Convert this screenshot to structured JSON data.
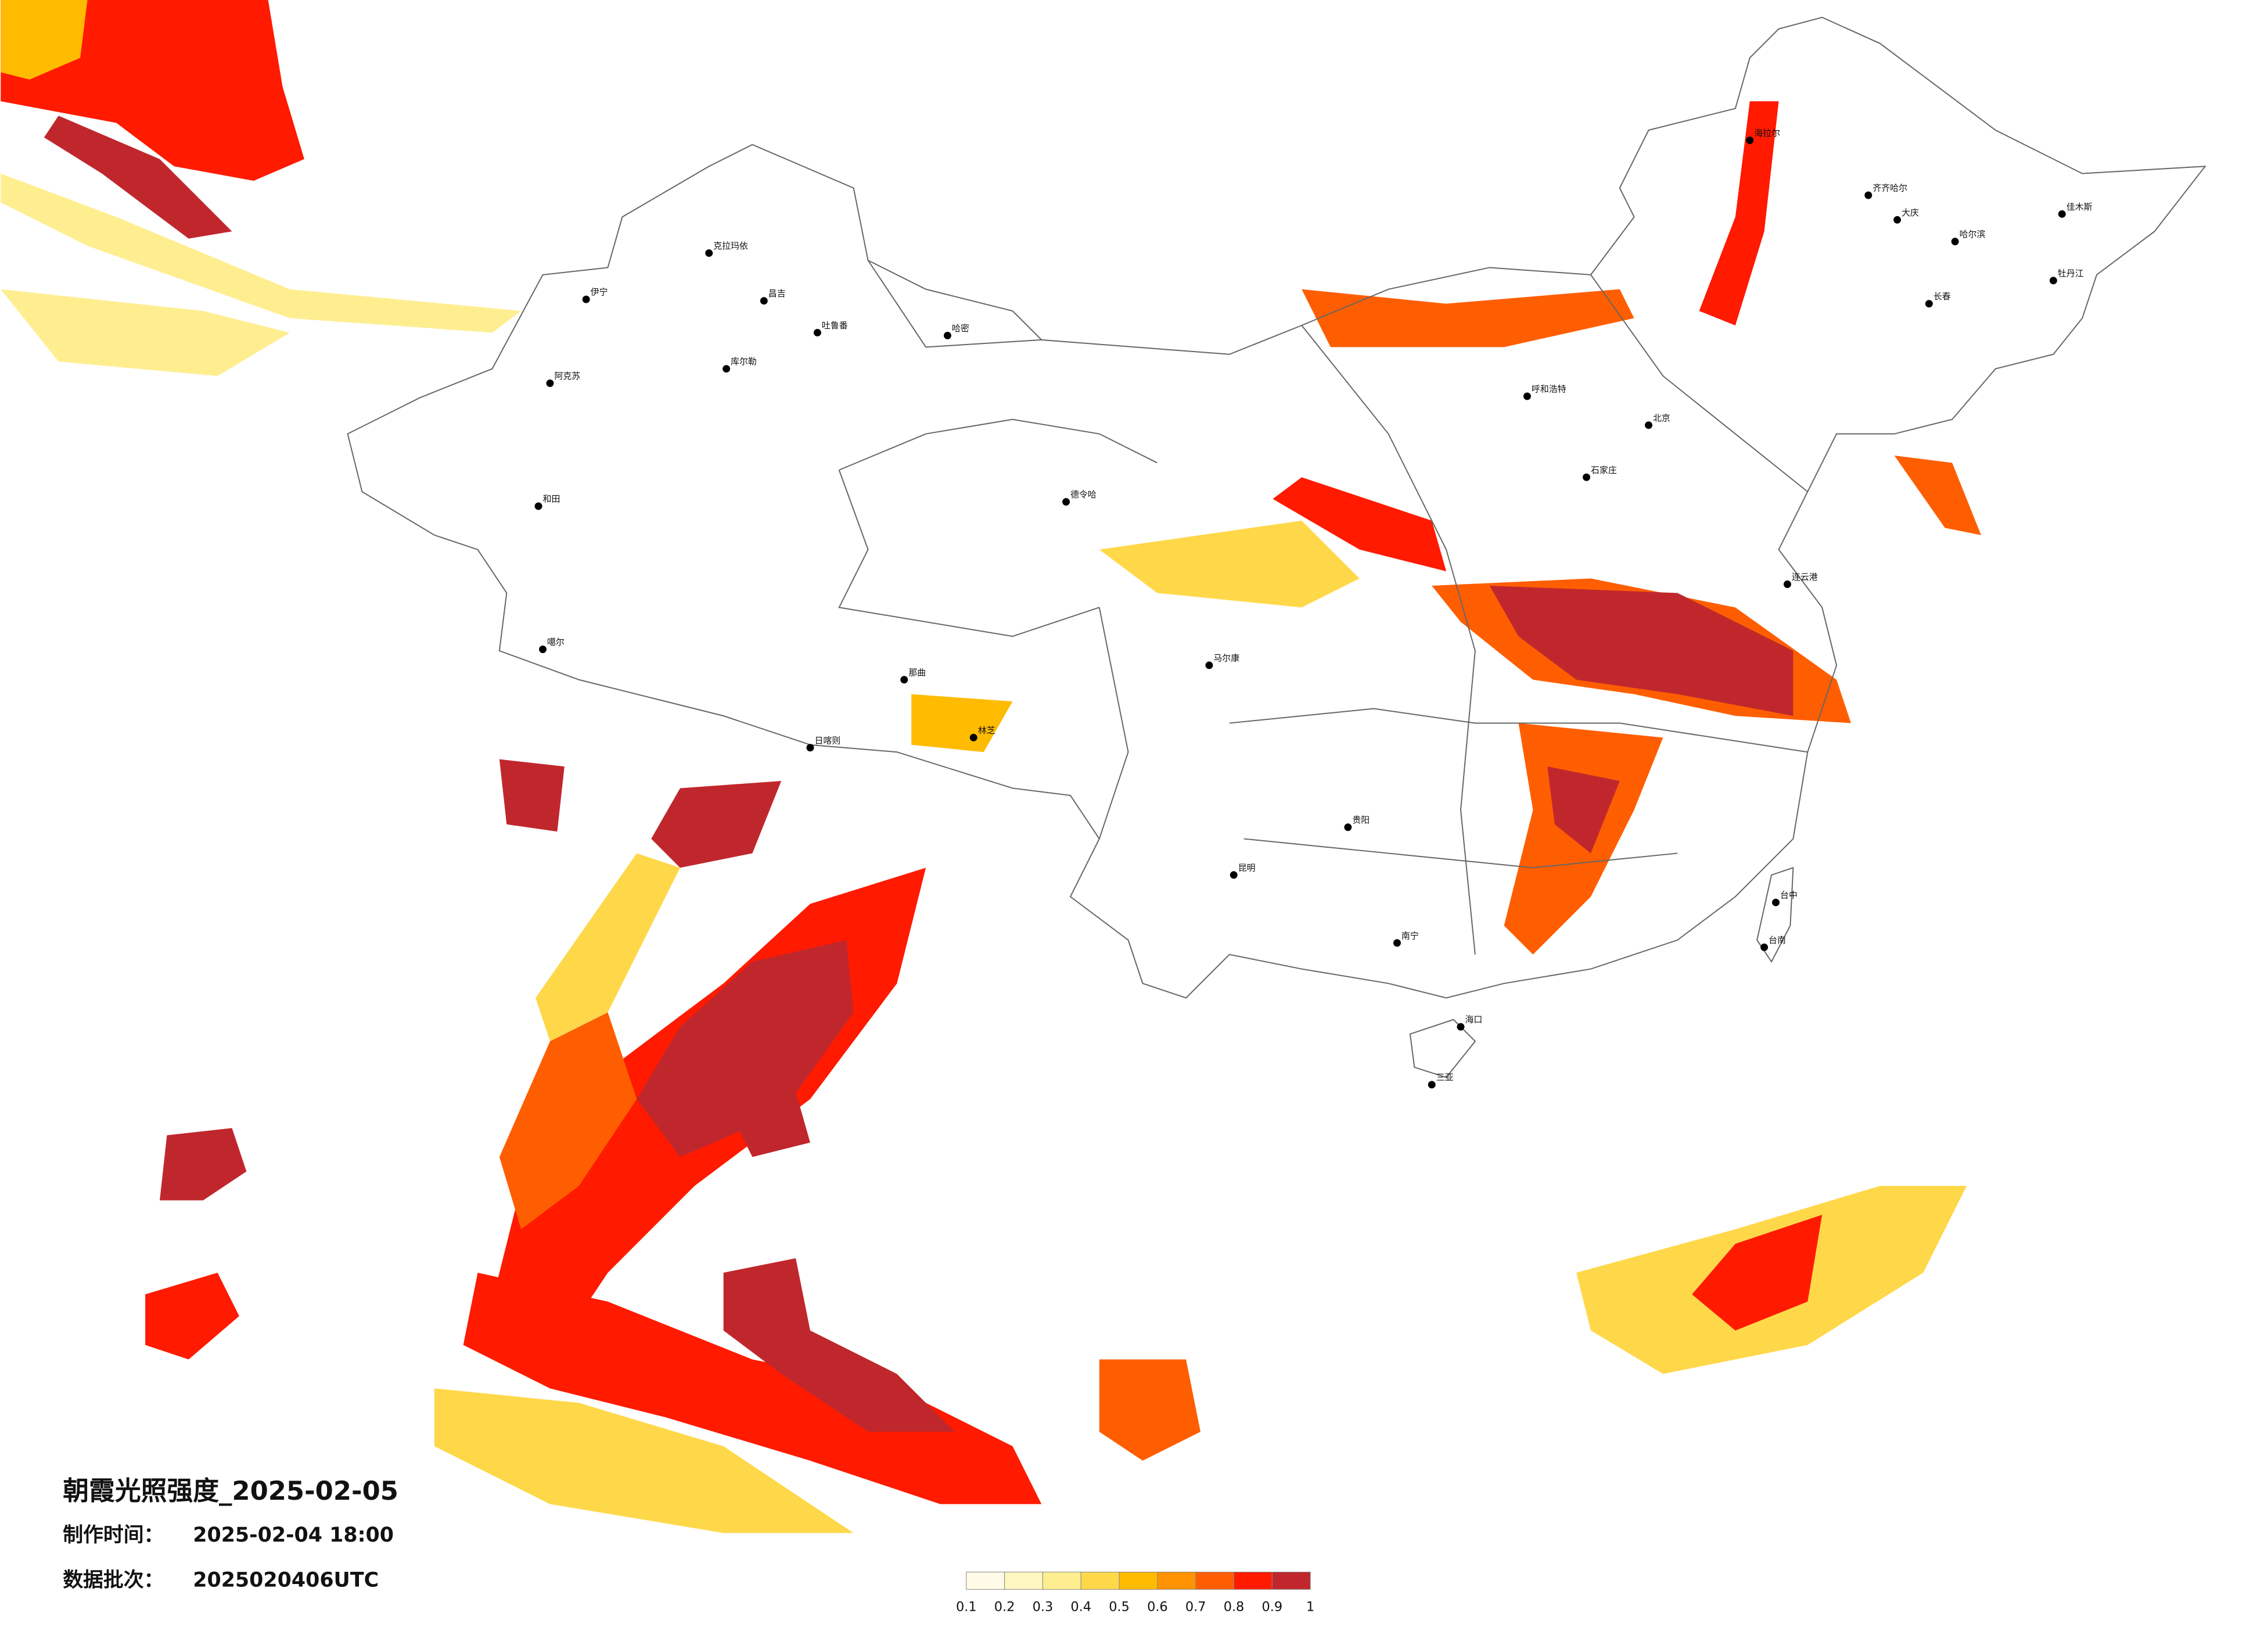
{
  "header": {
    "title": "朝霞光照强度_2025-02-05",
    "made_label": "制作时间：",
    "made_time": "2025-02-04 18:00",
    "batch_label": "数据批次：",
    "batch": "2025020406UTC"
  },
  "colorbar": {
    "ticks": [
      0.1,
      0.2,
      0.3,
      0.4,
      0.5,
      0.6,
      0.7,
      0.8,
      0.9,
      1
    ],
    "colors": [
      "#fffbe6",
      "#fff6c0",
      "#ffee90",
      "#ffd84a",
      "#ffbb00",
      "#ff9200",
      "#ff5e00",
      "#ff1a00",
      "#c0272d"
    ]
  },
  "cities": [
    "克拉玛依",
    "伊宁",
    "昌吉",
    "吐鲁番",
    "哈密",
    "库尔勒",
    "阿克苏",
    "和田",
    "噶尔",
    "日喀则",
    "那曲",
    "林芝",
    "德令哈",
    "海拉尔",
    "齐齐哈尔",
    "大庆",
    "哈尔滨",
    "佳木斯",
    "牡丹江",
    "长春",
    "呼和浩特",
    "北京",
    "石家庄",
    "马尔康",
    "昆明",
    "南宁",
    "海口",
    "三亚",
    "台中",
    "台南",
    "贵阳",
    "连云港"
  ]
}
